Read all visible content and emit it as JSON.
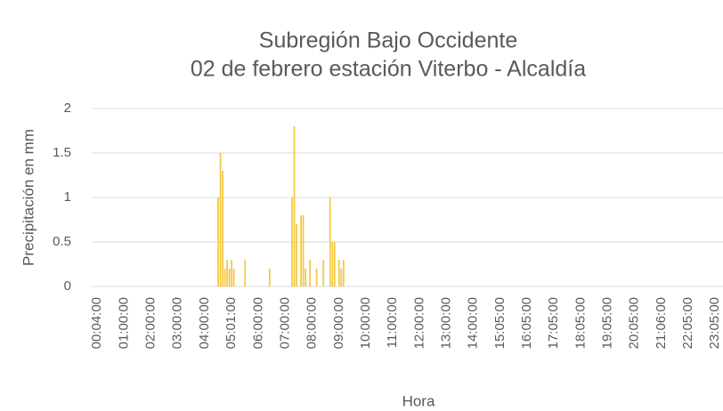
{
  "chart_data": {
    "type": "bar",
    "title": "Subregión Bajo Occidente",
    "subtitle": "02 de febrero estación Viterbo - Alcaldía",
    "x_label": "Hora",
    "y_label": "Precipitación en mm",
    "color": "#f5c842",
    "grid": true,
    "ylim": [
      0,
      2
    ],
    "yticks": [
      0,
      0.5,
      1,
      1.5,
      2
    ],
    "categories": [
      "00:04:00",
      null,
      null,
      null,
      null,
      null,
      null,
      null,
      null,
      null,
      null,
      null,
      "01:00:00",
      null,
      null,
      null,
      null,
      null,
      null,
      null,
      null,
      null,
      null,
      null,
      "02:00:00",
      null,
      null,
      null,
      null,
      null,
      null,
      null,
      null,
      null,
      null,
      null,
      "03:00:00",
      null,
      null,
      null,
      null,
      null,
      null,
      null,
      null,
      null,
      null,
      null,
      "04:00:00",
      null,
      null,
      null,
      null,
      null,
      null,
      null,
      null,
      null,
      null,
      null,
      "05:01:00",
      null,
      null,
      null,
      null,
      null,
      null,
      null,
      null,
      null,
      null,
      null,
      "06:00:00",
      null,
      null,
      null,
      null,
      null,
      null,
      null,
      null,
      null,
      null,
      null,
      "07:00:00",
      null,
      null,
      null,
      null,
      null,
      null,
      null,
      null,
      null,
      null,
      null,
      "08:00:00",
      null,
      null,
      null,
      null,
      null,
      null,
      null,
      null,
      null,
      null,
      null,
      "09:00:00",
      null,
      null,
      null,
      null,
      null,
      null,
      null,
      null,
      null,
      null,
      null,
      "10:00:00",
      null,
      null,
      null,
      null,
      null,
      null,
      null,
      null,
      null,
      null,
      null,
      "11:00:00",
      null,
      null,
      null,
      null,
      null,
      null,
      null,
      null,
      null,
      null,
      null,
      "12:00:00",
      null,
      null,
      null,
      null,
      null,
      null,
      null,
      null,
      null,
      null,
      null,
      "13:00:00",
      null,
      null,
      null,
      null,
      null,
      null,
      null,
      null,
      null,
      null,
      null,
      "14:00:00",
      null,
      null,
      null,
      null,
      null,
      null,
      null,
      null,
      null,
      null,
      null,
      "15:05:00",
      null,
      null,
      null,
      null,
      null,
      null,
      null,
      null,
      null,
      null,
      null,
      "16:05:00",
      null,
      null,
      null,
      null,
      null,
      null,
      null,
      null,
      null,
      null,
      null,
      "17:05:00",
      null,
      null,
      null,
      null,
      null,
      null,
      null,
      null,
      null,
      null,
      null,
      "18:05:00",
      null,
      null,
      null,
      null,
      null,
      null,
      null,
      null,
      null,
      null,
      null,
      "19:05:00",
      null,
      null,
      null,
      null,
      null,
      null,
      null,
      null,
      null,
      null,
      null,
      "20:05:00",
      null,
      null,
      null,
      null,
      null,
      null,
      null,
      null,
      null,
      null,
      null,
      "21:06:00",
      null,
      null,
      null,
      null,
      null,
      null,
      null,
      null,
      null,
      null,
      null,
      "22:05:00",
      null,
      null,
      null,
      null,
      null,
      null,
      null,
      null,
      null,
      null,
      null,
      "23:05:00",
      null,
      null,
      null
    ],
    "values": [
      0,
      0,
      0,
      0,
      0,
      0,
      0,
      0,
      0,
      0,
      0,
      0,
      0,
      0,
      0,
      0,
      0,
      0,
      0,
      0,
      0,
      0,
      0,
      0,
      0,
      0,
      0,
      0,
      0,
      0,
      0,
      0,
      0,
      0,
      0,
      0,
      0,
      0,
      0,
      0,
      0,
      0,
      0,
      0,
      0,
      0,
      0,
      0,
      0,
      0,
      0,
      0,
      0,
      0,
      1,
      1.5,
      1.3,
      0.2,
      0.3,
      0.2,
      0.3,
      0.2,
      0,
      0,
      0,
      0,
      0.3,
      0,
      0,
      0,
      0,
      0,
      0,
      0,
      0,
      0,
      0,
      0.2,
      0,
      0,
      0,
      0,
      0,
      0,
      0,
      0,
      0,
      1,
      1.8,
      0.7,
      0,
      0.8,
      0.8,
      0.2,
      0,
      0.3,
      0,
      0,
      0.2,
      0,
      0,
      0.3,
      0,
      0,
      1,
      0.5,
      0.5,
      0,
      0.3,
      0.2,
      0.3,
      0,
      0,
      0,
      0,
      0,
      0,
      0,
      0,
      0,
      0,
      0,
      0,
      0,
      0,
      0,
      0,
      0,
      0,
      0,
      0,
      0,
      0,
      0,
      0,
      0,
      0,
      0,
      0,
      0,
      0,
      0,
      0,
      0,
      0,
      0,
      0,
      0,
      0,
      0,
      0,
      0,
      0,
      0,
      0,
      0,
      0,
      0,
      0,
      0,
      0,
      0,
      0,
      0,
      0,
      0,
      0,
      0,
      0,
      0,
      0,
      0,
      0,
      0,
      0,
      0,
      0,
      0,
      0,
      0,
      0,
      0,
      0,
      0,
      0,
      0,
      0,
      0,
      0,
      0,
      0,
      0,
      0,
      0,
      0,
      0,
      0,
      0,
      0,
      0,
      0,
      0,
      0,
      0,
      0,
      0,
      0,
      0,
      0,
      0,
      0,
      0,
      0,
      0,
      0,
      0,
      0,
      0,
      0,
      0,
      0,
      0,
      0,
      0,
      0,
      0,
      0,
      0,
      0,
      0,
      0,
      0,
      0,
      0,
      0,
      0,
      0,
      0,
      0,
      0,
      0,
      0,
      0,
      0,
      0,
      0,
      0,
      0,
      0,
      0,
      0,
      0,
      0,
      0,
      0,
      0,
      0,
      0,
      0,
      0,
      0,
      0,
      0,
      0,
      0,
      0,
      0,
      0,
      0,
      0,
      0,
      0,
      0,
      0,
      0,
      0,
      0,
      0,
      0,
      0
    ]
  }
}
